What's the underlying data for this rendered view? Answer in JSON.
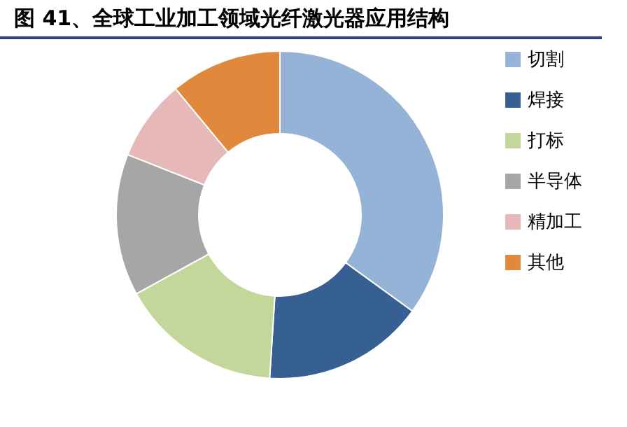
{
  "chart_data": {
    "type": "donut",
    "title": "图 41、全球工业加工领域光纤激光器应用结构",
    "categories": [
      "切割",
      "焊接",
      "打标",
      "半导体",
      "精加工",
      "其他"
    ],
    "values": [
      35,
      16,
      16,
      14,
      8,
      11
    ],
    "colors": [
      "#95b3d7",
      "#366092",
      "#c4d79b",
      "#a6a6a6",
      "#e6b9b8",
      "#e0883c"
    ],
    "legend": "right"
  }
}
